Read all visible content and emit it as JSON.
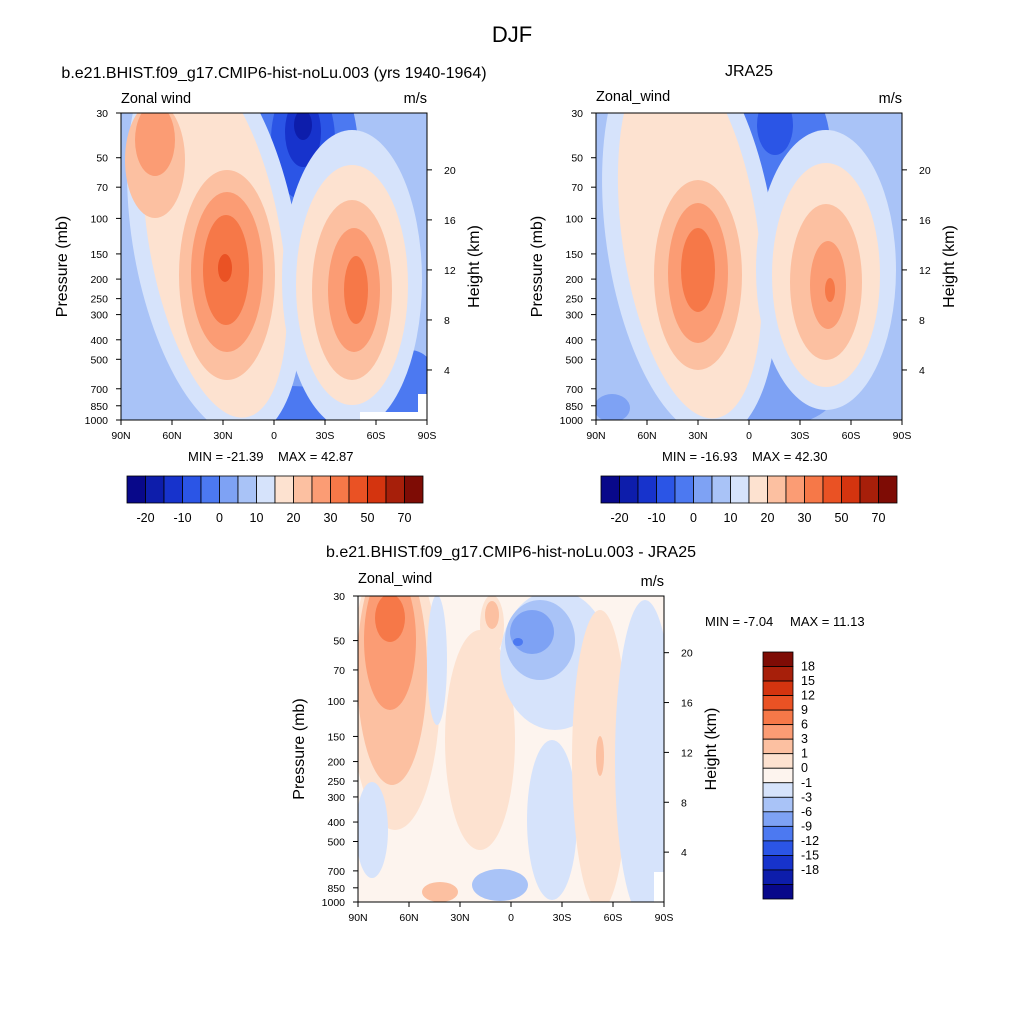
{
  "figure": {
    "title": "DJF"
  },
  "colors": {
    "levels12": [
      "#08088a",
      "#0d1dab",
      "#1733cc",
      "#2b55e6",
      "#4c79f1",
      "#7ea2f4",
      "#a9c3f7",
      "#d6e3fb",
      "#fde2d0",
      "#fcc0a1",
      "#fb9c74",
      "#f67848",
      "#ea5224",
      "#d4340f",
      "#a71f0a",
      "#7e0c05"
    ],
    "levels18": [
      "#08088a",
      "#0d1dab",
      "#1733cc",
      "#2b55e6",
      "#4c79f1",
      "#7ea2f4",
      "#a9c3f7",
      "#d6e3fb",
      "#fdf4ee",
      "#fde2d0",
      "#fcc0a1",
      "#fb9c74",
      "#f67848",
      "#ea5224",
      "#d4340f",
      "#a71f0a",
      "#7e0c05"
    ]
  },
  "chart_data": [
    {
      "type": "contour",
      "title": "b.e21.BHIST.f09_g17.CMIP6-hist-noLu.003 (yrs 1940-1964)",
      "left_label": "Zonal wind",
      "right_label": "m/s",
      "ylabel": "Pressure (mb)",
      "ylabel_right": "Height (km)",
      "x_ticks": [
        "90N",
        "60N",
        "30N",
        "0",
        "30S",
        "60S",
        "90S"
      ],
      "y_ticks": [
        "30",
        "50",
        "70",
        "100",
        "150",
        "200",
        "250",
        "300",
        "400",
        "500",
        "700",
        "850",
        "1000"
      ],
      "y_ticks_right": [
        "20",
        "16",
        "12",
        "8",
        "4"
      ],
      "min_label": "MIN = -21.39",
      "max_label": "MAX =  42.87",
      "min": -21.39,
      "max": 42.87,
      "colorbar_labels": [
        "-20",
        "-10",
        "0",
        "10",
        "20",
        "30",
        "50",
        "70"
      ]
    },
    {
      "type": "contour",
      "title": "JRA25",
      "left_label": "Zonal_wind",
      "right_label": "m/s",
      "ylabel": "Pressure (mb)",
      "ylabel_right": "Height (km)",
      "x_ticks": [
        "90N",
        "60N",
        "30N",
        "0",
        "30S",
        "60S",
        "90S"
      ],
      "y_ticks": [
        "30",
        "50",
        "70",
        "100",
        "150",
        "200",
        "250",
        "300",
        "400",
        "500",
        "700",
        "850",
        "1000"
      ],
      "y_ticks_right": [
        "20",
        "16",
        "12",
        "8",
        "4"
      ],
      "min_label": "MIN = -16.93",
      "max_label": "MAX =  42.30",
      "min": -16.93,
      "max": 42.3,
      "colorbar_labels": [
        "-20",
        "-10",
        "0",
        "10",
        "20",
        "30",
        "50",
        "70"
      ]
    },
    {
      "type": "contour",
      "title": "b.e21.BHIST.f09_g17.CMIP6-hist-noLu.003 - JRA25",
      "left_label": "Zonal_wind",
      "right_label": "m/s",
      "ylabel": "Pressure (mb)",
      "ylabel_right": "Height (km)",
      "x_ticks": [
        "90N",
        "60N",
        "30N",
        "0",
        "30S",
        "60S",
        "90S"
      ],
      "y_ticks": [
        "30",
        "50",
        "70",
        "100",
        "150",
        "200",
        "250",
        "300",
        "400",
        "500",
        "700",
        "850",
        "1000"
      ],
      "y_ticks_right": [
        "20",
        "16",
        "12",
        "8",
        "4"
      ],
      "min_label": "MIN =  -7.04",
      "max_label": "MAX =  11.13",
      "min": -7.04,
      "max": 11.13,
      "colorbar_labels": [
        "18",
        "15",
        "12",
        "9",
        "6",
        "3",
        "1",
        "0",
        "-1",
        "-3",
        "-6",
        "-9",
        "-12",
        "-15",
        "-18"
      ]
    }
  ]
}
